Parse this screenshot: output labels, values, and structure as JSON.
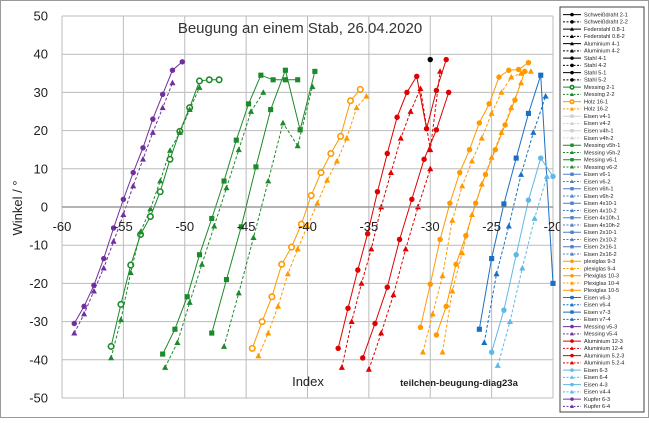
{
  "chart_data": {
    "type": "line",
    "title": "Beugung an einem Stab, 26.04.2020",
    "xlabel": "Index",
    "ylabel": "Winkel / °",
    "annotation": "teilchen-beugung-diag23a",
    "xlim": [
      -60,
      -20
    ],
    "ylim": [
      -50,
      50
    ],
    "x_ticks": [
      -60,
      -55,
      -50,
      -45,
      -40,
      -35,
      -30,
      -25,
      -20
    ],
    "y_ticks": [
      -50,
      -40,
      -30,
      -20,
      -10,
      0,
      10,
      20,
      30,
      40,
      50
    ],
    "x_tick_labels": [
      "-60",
      "-55",
      "-50",
      "-45",
      "-40",
      "-35",
      "-30",
      "-25",
      "-20"
    ],
    "y_tick_labels": [
      "-50",
      "-40",
      "-30",
      "-20",
      "-10",
      "0",
      "10",
      "20",
      "30",
      "40",
      "50"
    ],
    "grid": true,
    "legend_position": "right",
    "series": [
      {
        "name": "Schweißdraht 2-1",
        "color": "#000000",
        "marker": "circle",
        "dash": false,
        "x": [
          -30.0
        ],
        "y": [
          38.6
        ]
      },
      {
        "name": "Schweißdraht 2-2",
        "color": "#000000",
        "marker": "circle",
        "dash": true,
        "x": [],
        "y": []
      },
      {
        "name": "Federstahl 0.8-1",
        "color": "#000000",
        "marker": "triangle",
        "dash": false,
        "x": [],
        "y": []
      },
      {
        "name": "Federstahl 0.8-2",
        "color": "#000000",
        "marker": "triangle",
        "dash": true,
        "x": [],
        "y": []
      },
      {
        "name": "Aluminium 4-1",
        "color": "#000000",
        "marker": "triangle",
        "dash": false,
        "x": [],
        "y": []
      },
      {
        "name": "Aluminium 4-2",
        "color": "#000000",
        "marker": "triangle",
        "dash": true,
        "x": [],
        "y": []
      },
      {
        "name": "Stahl 4-1",
        "color": "#000000",
        "marker": "circle",
        "dash": false,
        "x": [],
        "y": []
      },
      {
        "name": "Stahl 4-2",
        "color": "#000000",
        "marker": "circle",
        "dash": true,
        "x": [],
        "y": []
      },
      {
        "name": "Stahl 5-1",
        "color": "#000000",
        "marker": "circle",
        "dash": false,
        "x": [],
        "y": []
      },
      {
        "name": "Stahl 5-2",
        "color": "#000000",
        "marker": "circle",
        "dash": true,
        "x": [],
        "y": []
      },
      {
        "name": "Messing 2-1",
        "color": "#1b8a2a",
        "marker": "circle-open",
        "dash": false,
        "x": [
          -56.0,
          -55.2,
          -54.4,
          -53.6,
          -52.8,
          -52.0,
          -51.2,
          -50.4,
          -49.6,
          -48.8,
          -48.0,
          -47.2
        ],
        "y": [
          -36.5,
          -25.5,
          -15.2,
          -7.2,
          -2.5,
          4.0,
          12.5,
          19.8,
          26.0,
          33.0,
          33.3,
          33.3
        ]
      },
      {
        "name": "Messing 2-2",
        "color": "#1b8a2a",
        "marker": "triangle",
        "dash": true,
        "x": [
          -56.0,
          -55.2,
          -54.4,
          -53.6,
          -52.8,
          -52.0,
          -51.2,
          -50.4,
          -49.6,
          -48.8
        ],
        "y": [
          -39.5,
          -29.5,
          -17.2,
          -6.5,
          -0.5,
          6.8,
          14.8,
          19.5,
          25.5,
          31.3
        ]
      },
      {
        "name": "Holz 16-1",
        "color": "#ff9900",
        "marker": "circle-open",
        "dash": false,
        "x": [
          -44.5,
          -43.7,
          -42.9,
          -42.1,
          -41.3,
          -40.5,
          -39.7,
          -38.9,
          -38.1,
          -37.3,
          -36.5,
          -35.7
        ],
        "y": [
          -37.0,
          -30.0,
          -23.5,
          -15.0,
          -10.5,
          -4.5,
          3.0,
          9.0,
          14.0,
          18.5,
          27.8,
          30.8
        ]
      },
      {
        "name": "Holz 16-2",
        "color": "#ff9900",
        "marker": "triangle",
        "dash": true,
        "x": [
          -44.0,
          -43.2,
          -42.4,
          -41.6,
          -40.8,
          -40.0,
          -39.2,
          -38.4,
          -37.6,
          -36.8,
          -36.0,
          -35.2
        ],
        "y": [
          -39.0,
          -33.0,
          -26.0,
          -17.5,
          -11.0,
          -5.0,
          1.0,
          7.0,
          12.0,
          18.0,
          26.0,
          29.0
        ]
      },
      {
        "name": "Eisen v4-1",
        "color": "#d0d0d0",
        "marker": "square",
        "dash": false,
        "x": [],
        "y": []
      },
      {
        "name": "Eisen v4-2",
        "color": "#d0d0d0",
        "marker": "triangle",
        "dash": true,
        "x": [],
        "y": []
      },
      {
        "name": "Eisen v4h-1",
        "color": "#d0d0d0",
        "marker": "square",
        "dash": false,
        "x": [],
        "y": []
      },
      {
        "name": "Eisen v4h-2",
        "color": "#d0d0d0",
        "marker": "triangle",
        "dash": true,
        "x": [],
        "y": []
      },
      {
        "name": "Messing v5h-1",
        "color": "#1b8a2a",
        "marker": "square",
        "dash": false,
        "x": [
          -51.8,
          -50.8,
          -49.8,
          -48.8,
          -47.8,
          -46.8,
          -45.8,
          -44.8,
          -43.8,
          -42.8,
          -41.8,
          -40.8
        ],
        "y": [
          -38.5,
          -32.0,
          -23.5,
          -12.5,
          -3.0,
          6.8,
          17.5,
          27.0,
          34.5,
          33.3,
          33.3,
          33.3
        ]
      },
      {
        "name": "Messing v5h-2",
        "color": "#1b8a2a",
        "marker": "triangle",
        "dash": true,
        "x": [
          -51.6,
          -50.6,
          -49.6,
          -48.6,
          -47.6,
          -46.6,
          -45.6,
          -44.6,
          -43.6
        ],
        "y": [
          -42.0,
          -35.5,
          -25.0,
          -15.0,
          -5.0,
          5.0,
          15.0,
          25.0,
          30.0
        ]
      },
      {
        "name": "Messing v6-1",
        "color": "#1b8a2a",
        "marker": "square",
        "dash": false,
        "x": [
          -47.8,
          -46.6,
          -45.4,
          -44.2,
          -43.0,
          -41.8,
          -40.6,
          -39.4
        ],
        "y": [
          -33.0,
          -19.0,
          -5.2,
          10.5,
          25.5,
          35.8,
          20.2,
          35.5
        ]
      },
      {
        "name": "Messing v6-2",
        "color": "#1b8a2a",
        "marker": "triangle",
        "dash": true,
        "x": [
          -46.8,
          -45.6,
          -44.4,
          -43.2,
          -42.0,
          -40.8,
          -39.6
        ],
        "y": [
          -36.5,
          -22.5,
          -8.0,
          6.8,
          22.0,
          16.0,
          31.5
        ]
      },
      {
        "name": "Eisen v6-1",
        "color": "#4e7fc8",
        "marker": "square",
        "dash": false,
        "x": [],
        "y": []
      },
      {
        "name": "Eisen v6-2",
        "color": "#4e7fc8",
        "marker": "triangle",
        "dash": true,
        "x": [],
        "y": []
      },
      {
        "name": "Eisen v6h-1",
        "color": "#4e7fc8",
        "marker": "square",
        "dash": false,
        "x": [],
        "y": []
      },
      {
        "name": "Eisen v6h-2",
        "color": "#4e7fc8",
        "marker": "triangle",
        "dash": true,
        "x": [],
        "y": []
      },
      {
        "name": "Eisen 4x10-1",
        "color": "#4e7fc8",
        "marker": "square",
        "dash": false,
        "x": [],
        "y": []
      },
      {
        "name": "Eisen 4x10-2",
        "color": "#4e7fc8",
        "marker": "triangle",
        "dash": true,
        "x": [],
        "y": []
      },
      {
        "name": "Eisen 4x10h-1",
        "color": "#4e7fc8",
        "marker": "square",
        "dash": false,
        "x": [],
        "y": []
      },
      {
        "name": "Eisen 4x10h-2",
        "color": "#4e7fc8",
        "marker": "triangle",
        "dash": true,
        "x": [],
        "y": []
      },
      {
        "name": "Eisen 2x10-1",
        "color": "#4e7fc8",
        "marker": "square",
        "dash": false,
        "x": [],
        "y": []
      },
      {
        "name": "Eisen 2x10-2",
        "color": "#4e7fc8",
        "marker": "triangle",
        "dash": true,
        "x": [],
        "y": []
      },
      {
        "name": "Eisen 2x16-1",
        "color": "#4e7fc8",
        "marker": "square",
        "dash": false,
        "x": [],
        "y": []
      },
      {
        "name": "Eisen 2x16-2",
        "color": "#4e7fc8",
        "marker": "triangle",
        "dash": true,
        "x": [],
        "y": []
      },
      {
        "name": "plexiglas 9-3",
        "color": "#ff9900",
        "marker": "circle",
        "dash": false,
        "x": [
          -30.8,
          -30.0,
          -29.2,
          -28.4,
          -27.6,
          -26.8,
          -26.0,
          -25.2,
          -24.4,
          -23.6,
          -22.8,
          -22.0
        ],
        "y": [
          -31.5,
          -20.2,
          -8.5,
          1.0,
          9.0,
          15.0,
          22.0,
          27.0,
          34.0,
          35.8,
          36.0,
          37.8
        ]
      },
      {
        "name": "plexiglas 9-4",
        "color": "#ff9900",
        "marker": "triangle",
        "dash": true,
        "x": [
          -30.6,
          -29.8,
          -29.0,
          -28.2,
          -27.4,
          -26.6,
          -25.8,
          -25.0,
          -24.2,
          -23.4,
          -22.6,
          -21.8
        ],
        "y": [
          -38.0,
          -28.0,
          -18.0,
          -3.5,
          5.5,
          12.0,
          18.0,
          24.5,
          30.0,
          34.0,
          35.0,
          35.5
        ]
      },
      {
        "name": "Plexiglas 10-3",
        "color": "#ff9900",
        "marker": "circle",
        "dash": false,
        "x": [
          -29.5,
          -28.7,
          -27.9,
          -27.1,
          -26.3,
          -25.5,
          -24.7,
          -23.9,
          -23.1,
          -22.3
        ],
        "y": [
          -33.5,
          -26.0,
          -15.0,
          -7.5,
          1.0,
          8.5,
          15.0,
          21.5,
          28.0,
          35.5
        ]
      },
      {
        "name": "Plexiglas 10-4",
        "color": "#ff9900",
        "marker": "triangle",
        "dash": true,
        "x": [
          -29.0,
          -28.2,
          -27.4,
          -26.6,
          -25.8,
          -25.0,
          -24.2,
          -23.4,
          -22.6
        ],
        "y": [
          -38.0,
          -22.0,
          -12.0,
          -2.0,
          6.0,
          13.0,
          19.5,
          26.0,
          32.5
        ]
      },
      {
        "name": "Plexiglas 10-5",
        "color": "#ff9900",
        "marker": "circle",
        "dash": false,
        "x": [],
        "y": []
      },
      {
        "name": "Eisen v6-3",
        "color": "#1a6fc4",
        "marker": "square",
        "dash": false,
        "x": [
          -26.0,
          -25.0,
          -24.0,
          -23.0,
          -22.0,
          -21.0,
          -20.0
        ],
        "y": [
          -32.0,
          -13.5,
          0.8,
          12.8,
          24.5,
          34.5,
          -20.0
        ]
      },
      {
        "name": "Eisen v6-4",
        "color": "#1a6fc4",
        "marker": "triangle",
        "dash": true,
        "x": [
          -25.6,
          -24.6,
          -23.6,
          -22.6,
          -21.6,
          -20.6
        ],
        "y": [
          -35.5,
          -17.5,
          -5.0,
          8.5,
          19.5,
          29.0
        ]
      },
      {
        "name": "Eisen v7-3",
        "color": "#1a6fc4",
        "marker": "square",
        "dash": false,
        "x": [],
        "y": []
      },
      {
        "name": "Eisen v7-4",
        "color": "#1a6fc4",
        "marker": "triangle",
        "dash": true,
        "x": [],
        "y": []
      },
      {
        "name": "Messing v5-3",
        "color": "#7030a0",
        "marker": "circle",
        "dash": false,
        "x": [],
        "y": []
      },
      {
        "name": "Messing v5-4",
        "color": "#7030a0",
        "marker": "triangle",
        "dash": true,
        "x": [],
        "y": []
      },
      {
        "name": "Aluminium 12-3",
        "color": "#e00000",
        "marker": "circle",
        "dash": false,
        "x": [
          -37.5,
          -36.7,
          -35.9,
          -35.1,
          -34.3,
          -33.5,
          -32.7,
          -31.9,
          -31.1,
          -30.3,
          -29.5,
          -28.7
        ],
        "y": [
          -37.0,
          -26.5,
          -16.5,
          -7.0,
          4.0,
          14.0,
          23.5,
          30.0,
          34.2,
          20.5,
          30.5,
          38.6
        ]
      },
      {
        "name": "Aluminium 12-4",
        "color": "#e00000",
        "marker": "triangle",
        "dash": true,
        "x": [
          -37.2,
          -36.4,
          -35.6,
          -34.8,
          -34.0,
          -33.2,
          -32.4,
          -31.6,
          -30.8,
          -30.0,
          -29.2
        ],
        "y": [
          -42.0,
          -30.0,
          -20.0,
          -11.0,
          0.0,
          9.0,
          18.0,
          25.0,
          31.0,
          15.0,
          35.5
        ]
      },
      {
        "name": "Aluminium 5.2-3",
        "color": "#e00000",
        "marker": "circle",
        "dash": false,
        "x": [
          -35.5,
          -34.5,
          -33.5,
          -32.5,
          -31.5,
          -30.5,
          -29.5,
          -28.5
        ],
        "y": [
          -39.5,
          -30.5,
          -21.0,
          -8.5,
          2.0,
          12.5,
          20.2,
          30.0
        ]
      },
      {
        "name": "Aluminium 5.2-4",
        "color": "#e00000",
        "marker": "triangle",
        "dash": true,
        "x": [
          -35.0,
          -34.0,
          -33.0,
          -32.0,
          -31.0,
          -30.0
        ],
        "y": [
          -42.5,
          -33.0,
          -23.0,
          -11.0,
          0.0,
          10.0
        ]
      },
      {
        "name": "Eisen 6-3",
        "color": "#5fb8e6",
        "marker": "circle",
        "dash": false,
        "x": [
          -25.0,
          -24.0,
          -23.0,
          -22.0,
          -21.0,
          -20.0
        ],
        "y": [
          -38.0,
          -27.0,
          -12.5,
          1.8,
          12.8,
          8.0
        ]
      },
      {
        "name": "Eisen 6-4",
        "color": "#5fb8e6",
        "marker": "triangle",
        "dash": true,
        "x": [
          -24.5,
          -23.5,
          -22.5,
          -21.5,
          -20.5
        ],
        "y": [
          -41.5,
          -30.0,
          -16.0,
          -3.0,
          8.0
        ]
      },
      {
        "name": "Eisen 4-3",
        "color": "#5fb8e6",
        "marker": "circle",
        "dash": false,
        "x": [],
        "y": []
      },
      {
        "name": "Eisen v4-4",
        "color": "#5fb8e6",
        "marker": "triangle",
        "dash": true,
        "x": [],
        "y": []
      },
      {
        "name": "Kupfer 6-3",
        "color": "#7030a0",
        "marker": "circle",
        "dash": false,
        "x": [
          -59.0,
          -58.2,
          -57.4,
          -56.6,
          -55.8,
          -55.0,
          -54.2,
          -53.4,
          -52.6,
          -51.8,
          -51.0,
          -50.2
        ],
        "y": [
          -30.5,
          -26.0,
          -20.5,
          -13.5,
          -5.5,
          2.0,
          9.0,
          15.5,
          23.0,
          29.5,
          35.8,
          38.0
        ]
      },
      {
        "name": "Kupfer 6-4",
        "color": "#7030a0",
        "marker": "triangle",
        "dash": true,
        "x": [
          -59.0,
          -58.2,
          -57.4,
          -56.6,
          -55.8,
          -55.0,
          -54.2,
          -53.4,
          -52.6,
          -51.8,
          -51.0
        ],
        "y": [
          -33.0,
          -28.0,
          -22.0,
          -16.0,
          -9.0,
          -2.0,
          5.5,
          12.5,
          19.5,
          26.0,
          32.5
        ]
      }
    ]
  }
}
